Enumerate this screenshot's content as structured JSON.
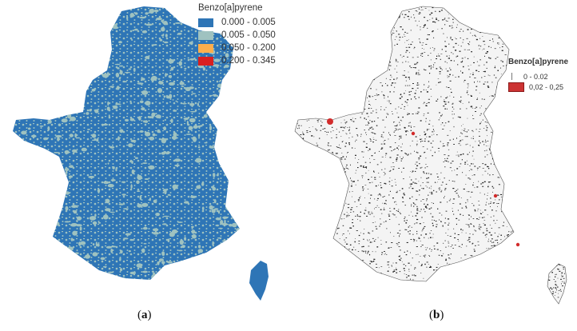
{
  "panel_a": {
    "legend_title": "Benzo[a]pyrene",
    "legend_items": [
      {
        "label": "0.000 - 0.005",
        "color": "#2e75b6"
      },
      {
        "label": "0.005 - 0.050",
        "color": "#9fc2c0"
      },
      {
        "label": "0.050 - 0.200",
        "color": "#fdae4c"
      },
      {
        "label": "0.200 - 0.345",
        "color": "#d92020"
      }
    ],
    "caption_open": "(",
    "caption_letter": "a",
    "caption_close": ")"
  },
  "panel_b": {
    "legend_title": "Benzo[a]pyrene",
    "legend_items": [
      {
        "label": "0 - 0.02",
        "color": "#777777"
      },
      {
        "label": "0,02 - 0,25",
        "color": "#cc3333"
      }
    ],
    "caption_open": "(",
    "caption_letter": "b",
    "caption_close": ")"
  },
  "colors": {
    "mainland_a": "#2e75b6",
    "speckle_a": "#9fc2c0",
    "speckle_b": "#222222",
    "hotspot_b": "#d22b2b"
  }
}
